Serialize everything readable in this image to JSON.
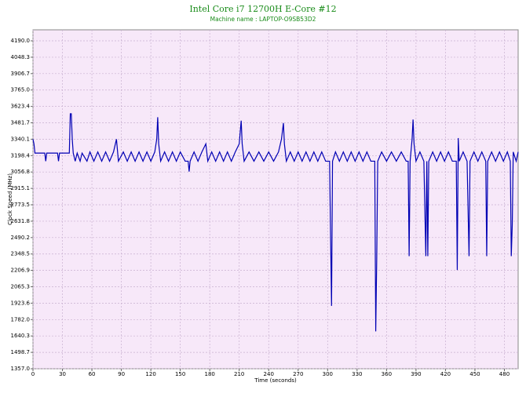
{
  "chart_data": {
    "type": "line",
    "title": "Intel Core i7  12700H E-Core #12",
    "subtitle": "Machine name : LAPTOP-O9SB53D2",
    "x_label": "Time (seconds)",
    "y_label": "Clock Speed (MHz)",
    "color": "#0000b4",
    "grid": true,
    "xlim": [
      0,
      494
    ],
    "ylim": [
      1357,
      4285
    ],
    "xticks": [
      0,
      30,
      60,
      90,
      120,
      150,
      180,
      210,
      240,
      270,
      300,
      330,
      360,
      390,
      420,
      450,
      480
    ],
    "yticks": [
      {
        "value": 1357,
        "label": "1357.0"
      },
      1498.7,
      1640.3,
      {
        "value": 1782,
        "label": "1782.0"
      },
      1923.6,
      2065.3,
      2206.9,
      2348.5,
      2490.2,
      2631.8,
      2773.5,
      2915.1,
      3056.8,
      3198.4,
      3340.1,
      3481.7,
      3623.4,
      {
        "value": 3765,
        "label": "3765.0"
      },
      3906.7,
      4048.3,
      {
        "value": 4190,
        "label": "4190.0"
      }
    ],
    "x": [
      0,
      1,
      2,
      12,
      13,
      14,
      25,
      26,
      27,
      37,
      38,
      39,
      40,
      41,
      43,
      45,
      48,
      50,
      55,
      58,
      62,
      66,
      70,
      74,
      78,
      82,
      85,
      87,
      92,
      96,
      100,
      104,
      108,
      112,
      116,
      120,
      124,
      126,
      127,
      128,
      130,
      134,
      138,
      142,
      146,
      150,
      155,
      158,
      159,
      160,
      164,
      168,
      172,
      176,
      178,
      182,
      186,
      190,
      194,
      198,
      202,
      206,
      210,
      212,
      213,
      215,
      220,
      225,
      230,
      235,
      240,
      245,
      250,
      253,
      255,
      256,
      258,
      262,
      266,
      270,
      274,
      278,
      282,
      286,
      290,
      294,
      298,
      302,
      303,
      304,
      305,
      308,
      312,
      316,
      320,
      324,
      328,
      332,
      336,
      340,
      344,
      348,
      349,
      350,
      351,
      355,
      360,
      365,
      370,
      375,
      380,
      382,
      383,
      384,
      386,
      387,
      388,
      390,
      394,
      398,
      400,
      401,
      402,
      403,
      407,
      411,
      415,
      419,
      423,
      427,
      431,
      432,
      433,
      434,
      438,
      442,
      444,
      445,
      449,
      453,
      457,
      461,
      462,
      463,
      467,
      471,
      475,
      479,
      483,
      486,
      487,
      488,
      489,
      492,
      494
    ],
    "values": [
      3340,
      3300,
      3220,
      3220,
      3150,
      3220,
      3220,
      3150,
      3220,
      3220,
      3560,
      3560,
      3340,
      3220,
      3150,
      3220,
      3150,
      3220,
      3150,
      3230,
      3150,
      3230,
      3150,
      3230,
      3150,
      3230,
      3340,
      3150,
      3230,
      3150,
      3230,
      3150,
      3230,
      3150,
      3230,
      3150,
      3230,
      3340,
      3530,
      3300,
      3150,
      3230,
      3150,
      3230,
      3150,
      3230,
      3150,
      3150,
      3060,
      3150,
      3230,
      3150,
      3230,
      3300,
      3150,
      3230,
      3150,
      3230,
      3150,
      3230,
      3150,
      3230,
      3300,
      3500,
      3300,
      3150,
      3230,
      3150,
      3230,
      3150,
      3230,
      3150,
      3230,
      3340,
      3480,
      3300,
      3150,
      3230,
      3150,
      3230,
      3150,
      3230,
      3150,
      3230,
      3150,
      3230,
      3150,
      3150,
      2520,
      1900,
      3150,
      3230,
      3150,
      3230,
      3150,
      3230,
      3150,
      3230,
      3150,
      3230,
      3150,
      3150,
      1680,
      2300,
      3150,
      3230,
      3150,
      3230,
      3150,
      3230,
      3150,
      3150,
      2330,
      3150,
      3340,
      3510,
      3300,
      3150,
      3230,
      3150,
      2330,
      3150,
      2330,
      3150,
      3230,
      3150,
      3230,
      3150,
      3230,
      3150,
      3150,
      2210,
      3350,
      3150,
      3230,
      3150,
      2330,
      3150,
      3230,
      3150,
      3230,
      3150,
      2330,
      3150,
      3230,
      3150,
      3230,
      3150,
      3230,
      3150,
      2330,
      2600,
      3230,
      3150,
      3230
    ]
  }
}
